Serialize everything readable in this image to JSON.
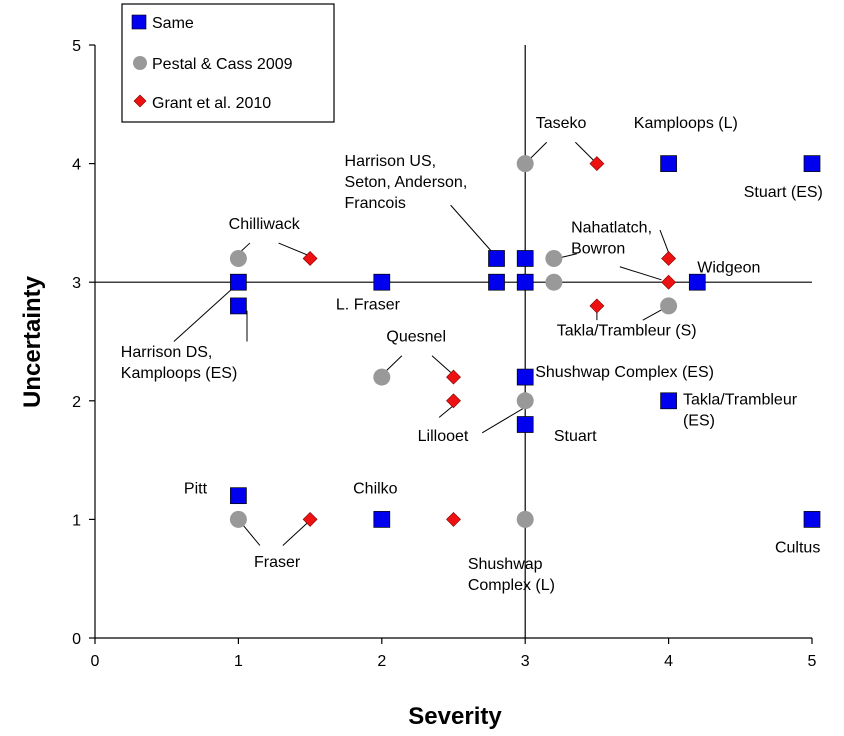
{
  "chart_data": {
    "type": "scatter",
    "xlabel": "Severity",
    "ylabel": "Uncertainty",
    "xlim": [
      0,
      5
    ],
    "ylim": [
      0,
      5
    ],
    "xticks": [
      "0",
      "1",
      "2",
      "3",
      "4",
      "5"
    ],
    "yticks": [
      "0",
      "1",
      "2",
      "3",
      "4",
      "5"
    ],
    "reference_lines": {
      "x": 3,
      "y": 3
    },
    "legend_position": "top-left",
    "series": [
      {
        "name": "Same",
        "marker": "square",
        "color": "#0000ee",
        "points": [
          {
            "x": 1,
            "y": 3
          },
          {
            "x": 1,
            "y": 2.8
          },
          {
            "x": 2,
            "y": 3
          },
          {
            "x": 2.8,
            "y": 3.2
          },
          {
            "x": 3,
            "y": 3.2
          },
          {
            "x": 2.8,
            "y": 3
          },
          {
            "x": 3,
            "y": 3
          },
          {
            "x": 4,
            "y": 4
          },
          {
            "x": 5,
            "y": 4
          },
          {
            "x": 4.2,
            "y": 3
          },
          {
            "x": 3,
            "y": 2.2
          },
          {
            "x": 3,
            "y": 1.8
          },
          {
            "x": 4,
            "y": 2
          },
          {
            "x": 1,
            "y": 1.2
          },
          {
            "x": 2,
            "y": 1
          },
          {
            "x": 5,
            "y": 1
          }
        ]
      },
      {
        "name": "Pestal & Cass 2009",
        "marker": "circle",
        "color": "#999999",
        "points": [
          {
            "x": 1,
            "y": 3.2
          },
          {
            "x": 3,
            "y": 4
          },
          {
            "x": 3.2,
            "y": 3.2
          },
          {
            "x": 3.2,
            "y": 3
          },
          {
            "x": 4,
            "y": 2.8
          },
          {
            "x": 2,
            "y": 2.2
          },
          {
            "x": 3,
            "y": 2
          },
          {
            "x": 1,
            "y": 1
          },
          {
            "x": 3,
            "y": 1
          }
        ]
      },
      {
        "name": "Grant et al. 2010",
        "marker": "diamond",
        "color": "#ee1111",
        "points": [
          {
            "x": 1.5,
            "y": 3.2
          },
          {
            "x": 3.5,
            "y": 4
          },
          {
            "x": 4,
            "y": 3.2
          },
          {
            "x": 4,
            "y": 3
          },
          {
            "x": 3.5,
            "y": 2.8
          },
          {
            "x": 2.5,
            "y": 2.2
          },
          {
            "x": 2.5,
            "y": 2
          },
          {
            "x": 1.5,
            "y": 1
          },
          {
            "x": 2.5,
            "y": 1
          }
        ]
      }
    ],
    "annotations": [
      {
        "lines": [
          "Taseko"
        ],
        "at": [
          3.25,
          4.3
        ],
        "anchor": "middle",
        "leaders": [
          [
            [
              3.15,
              4.18
            ],
            [
              3.0,
              4.0
            ]
          ],
          [
            [
              3.35,
              4.18
            ],
            [
              3.5,
              4.0
            ]
          ]
        ]
      },
      {
        "lines": [
          "Kamploops (L)"
        ],
        "at": [
          4.12,
          4.3
        ],
        "anchor": "middle",
        "leaders": []
      },
      {
        "lines": [
          "Stuart (ES)"
        ],
        "at": [
          4.8,
          3.72
        ],
        "anchor": "middle",
        "leaders": []
      },
      {
        "lines": [
          "Harrison US,",
          "Seton, Anderson,",
          "Francois"
        ],
        "at": [
          1.74,
          3.98
        ],
        "anchor": "start",
        "leaders": [
          [
            [
              2.48,
              3.65
            ],
            [
              2.78,
              3.24
            ]
          ]
        ]
      },
      {
        "lines": [
          "Chilliwack"
        ],
        "at": [
          1.18,
          3.45
        ],
        "anchor": "middle",
        "leaders": [
          [
            [
              1.08,
              3.33
            ],
            [
              1.0,
              3.24
            ]
          ],
          [
            [
              1.28,
              3.33
            ],
            [
              1.5,
              3.22
            ]
          ]
        ]
      },
      {
        "lines": [
          "Nahatlatch,",
          "Bowron"
        ],
        "at": [
          3.32,
          3.42
        ],
        "anchor": "start",
        "leaders": [
          [
            [
              3.36,
              3.24
            ],
            [
              3.22,
              3.2
            ]
          ],
          [
            [
              3.94,
              3.44
            ],
            [
              4.0,
              3.25
            ]
          ],
          [
            [
              3.66,
              3.13
            ],
            [
              3.95,
              3.02
            ]
          ]
        ]
      },
      {
        "lines": [
          "Widgeon"
        ],
        "at": [
          4.2,
          3.08
        ],
        "anchor": "start",
        "leaders": []
      },
      {
        "lines": [
          "L. Fraser"
        ],
        "at": [
          1.68,
          2.77
        ],
        "anchor": "start",
        "leaders": []
      },
      {
        "lines": [
          "Takla/Trambleur (S)"
        ],
        "at": [
          3.22,
          2.55
        ],
        "anchor": "start",
        "leaders": [
          [
            [
              3.5,
              2.68
            ],
            [
              3.5,
              2.8
            ]
          ],
          [
            [
              3.82,
              2.68
            ],
            [
              3.97,
              2.78
            ]
          ]
        ]
      },
      {
        "lines": [
          "Harrison DS,",
          "Kamploops (ES)"
        ],
        "at": [
          0.18,
          2.37
        ],
        "anchor": "start",
        "leaders": [
          [
            [
              0.55,
              2.5
            ],
            [
              0.98,
              2.97
            ]
          ],
          [
            [
              1.06,
              2.5
            ],
            [
              1.06,
              2.76
            ]
          ]
        ]
      },
      {
        "lines": [
          "Quesnel"
        ],
        "at": [
          2.24,
          2.5
        ],
        "anchor": "middle",
        "leaders": [
          [
            [
              2.14,
              2.38
            ],
            [
              2.02,
              2.24
            ]
          ],
          [
            [
              2.35,
              2.38
            ],
            [
              2.48,
              2.24
            ]
          ]
        ]
      },
      {
        "lines": [
          "Shushwap Complex  (ES)"
        ],
        "at": [
          3.07,
          2.2
        ],
        "anchor": "start",
        "leaders": []
      },
      {
        "lines": [
          "Takla/Trambleur",
          "(ES)"
        ],
        "at": [
          4.1,
          1.97
        ],
        "anchor": "start",
        "leaders": []
      },
      {
        "lines": [
          "Lillooet"
        ],
        "at": [
          2.25,
          1.66
        ],
        "anchor": "start",
        "leaders": [
          [
            [
              2.4,
              1.86
            ],
            [
              2.5,
              1.96
            ]
          ],
          [
            [
              2.7,
              1.73
            ],
            [
              3.02,
              1.96
            ]
          ]
        ]
      },
      {
        "lines": [
          "Stuart"
        ],
        "at": [
          3.2,
          1.66
        ],
        "anchor": "start",
        "leaders": []
      },
      {
        "lines": [
          "Pitt"
        ],
        "at": [
          0.62,
          1.22
        ],
        "anchor": "start",
        "leaders": []
      },
      {
        "lines": [
          "Chilko"
        ],
        "at": [
          1.8,
          1.22
        ],
        "anchor": "start",
        "leaders": []
      },
      {
        "lines": [
          "Fraser"
        ],
        "at": [
          1.27,
          0.6
        ],
        "anchor": "middle",
        "leaders": [
          [
            [
              1.15,
              0.78
            ],
            [
              1.02,
              0.97
            ]
          ],
          [
            [
              1.31,
              0.78
            ],
            [
              1.48,
              0.97
            ]
          ]
        ]
      },
      {
        "lines": [
          "Shushwap",
          "Complex (L)"
        ],
        "at": [
          2.6,
          0.58
        ],
        "anchor": "start",
        "leaders": []
      },
      {
        "lines": [
          "Cultus"
        ],
        "at": [
          4.9,
          0.72
        ],
        "anchor": "middle",
        "leaders": []
      }
    ]
  }
}
